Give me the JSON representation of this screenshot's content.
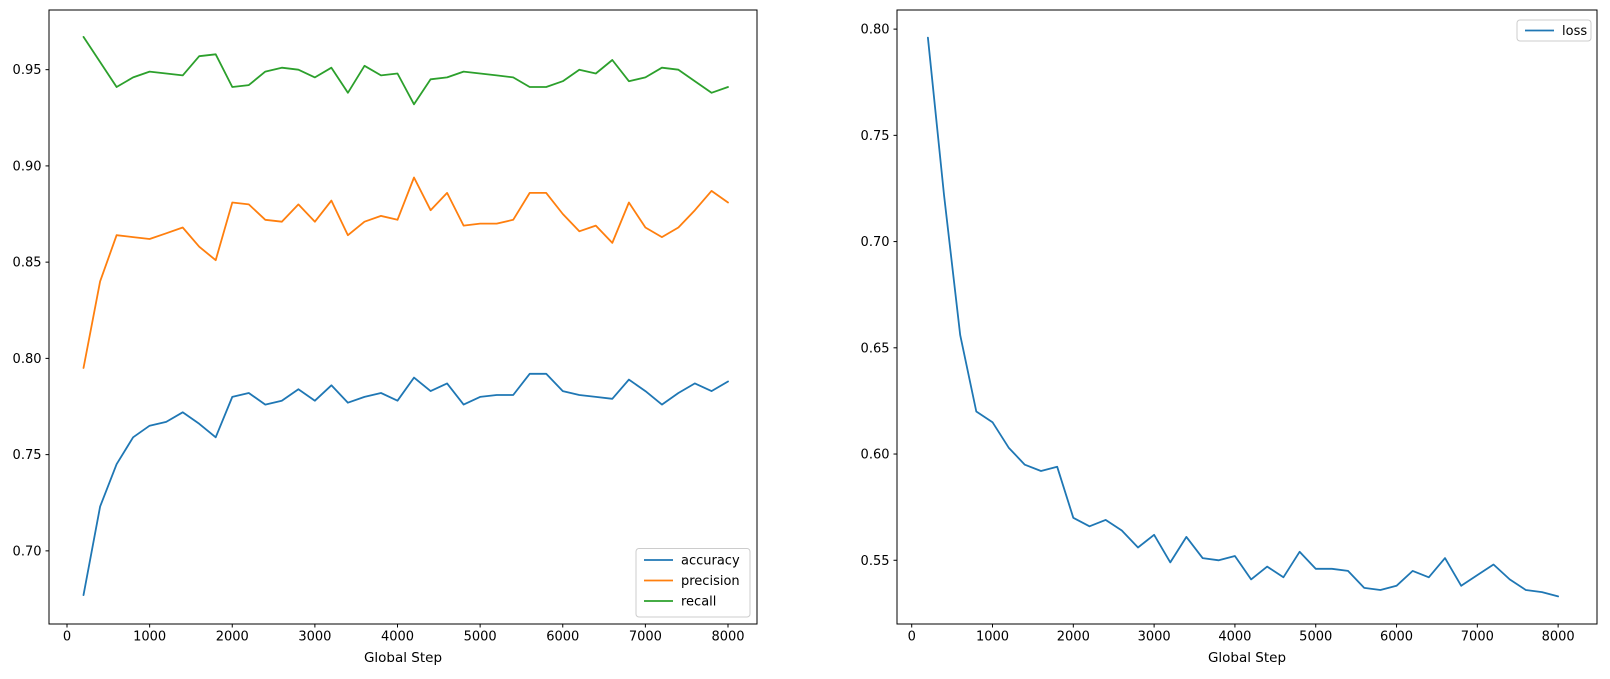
{
  "figure": {
    "background": "#ffffff",
    "text_color": "#000000",
    "spine_color": "#000000",
    "legend_border_color": "#cccccc"
  },
  "chart_data": [
    {
      "type": "line",
      "title": "",
      "xlabel": "Global Step",
      "ylabel": "",
      "grid": false,
      "x": [
        200,
        400,
        600,
        800,
        1000,
        1200,
        1400,
        1600,
        1800,
        2000,
        2200,
        2400,
        2600,
        2800,
        3000,
        3200,
        3400,
        3600,
        3800,
        4000,
        4200,
        4400,
        4600,
        4800,
        5000,
        5200,
        5400,
        5600,
        5800,
        6000,
        6200,
        6400,
        6600,
        6800,
        7000,
        7200,
        7400,
        7600,
        7800,
        8000
      ],
      "series": [
        {
          "name": "accuracy",
          "color": "#1f77b4",
          "values": [
            0.677,
            0.723,
            0.745,
            0.759,
            0.765,
            0.767,
            0.772,
            0.766,
            0.759,
            0.78,
            0.782,
            0.776,
            0.778,
            0.784,
            0.778,
            0.786,
            0.777,
            0.78,
            0.782,
            0.778,
            0.79,
            0.783,
            0.787,
            0.776,
            0.78,
            0.781,
            0.781,
            0.792,
            0.792,
            0.783,
            0.781,
            0.78,
            0.779,
            0.789,
            0.783,
            0.776,
            0.782,
            0.787,
            0.783,
            0.788
          ]
        },
        {
          "name": "precision",
          "color": "#ff7f0e",
          "values": [
            0.795,
            0.84,
            0.864,
            0.863,
            0.862,
            0.865,
            0.868,
            0.858,
            0.851,
            0.881,
            0.88,
            0.872,
            0.871,
            0.88,
            0.871,
            0.882,
            0.864,
            0.871,
            0.874,
            0.872,
            0.894,
            0.877,
            0.886,
            0.869,
            0.87,
            0.87,
            0.872,
            0.886,
            0.886,
            0.875,
            0.866,
            0.869,
            0.86,
            0.881,
            0.868,
            0.863,
            0.868,
            0.877,
            0.887,
            0.881
          ]
        },
        {
          "name": "recall",
          "color": "#2ca02c",
          "values": [
            0.967,
            0.954,
            0.941,
            0.946,
            0.949,
            0.948,
            0.947,
            0.957,
            0.958,
            0.941,
            0.942,
            0.949,
            0.951,
            0.95,
            0.946,
            0.951,
            0.938,
            0.952,
            0.947,
            0.948,
            0.932,
            0.945,
            0.946,
            0.949,
            0.948,
            0.947,
            0.946,
            0.941,
            0.941,
            0.944,
            0.95,
            0.948,
            0.955,
            0.944,
            0.946,
            0.951,
            0.95,
            0.944,
            0.938,
            0.941
          ]
        }
      ],
      "xticks": [
        0,
        1000,
        2000,
        3000,
        4000,
        5000,
        6000,
        7000,
        8000
      ],
      "yticks": [
        0.7,
        0.75,
        0.8,
        0.85,
        0.9,
        0.95
      ],
      "xlim": [
        -218,
        8351
      ],
      "ylim": [
        0.662,
        0.981
      ],
      "ytick_decimals": 2,
      "legend": {
        "position": "lower right",
        "entries": [
          "accuracy",
          "precision",
          "recall"
        ]
      }
    },
    {
      "type": "line",
      "title": "",
      "xlabel": "Global Step",
      "ylabel": "",
      "grid": false,
      "x": [
        200,
        400,
        600,
        800,
        1000,
        1200,
        1400,
        1600,
        1800,
        2000,
        2200,
        2400,
        2600,
        2800,
        3000,
        3200,
        3400,
        3600,
        3800,
        4000,
        4200,
        4400,
        4600,
        4800,
        5000,
        5200,
        5400,
        5600,
        5800,
        6000,
        6200,
        6400,
        6600,
        6800,
        7000,
        7200,
        7400,
        7600,
        7800,
        8000
      ],
      "series": [
        {
          "name": "loss",
          "color": "#1f77b4",
          "values": [
            0.796,
            0.722,
            0.656,
            0.62,
            0.615,
            0.603,
            0.595,
            0.592,
            0.594,
            0.57,
            0.566,
            0.569,
            0.564,
            0.556,
            0.562,
            0.549,
            0.561,
            0.551,
            0.55,
            0.552,
            0.541,
            0.547,
            0.542,
            0.554,
            0.546,
            0.546,
            0.545,
            0.537,
            0.536,
            0.538,
            0.545,
            0.542,
            0.551,
            0.538,
            0.543,
            0.548,
            0.541,
            0.536,
            0.535,
            0.533
          ]
        }
      ],
      "xticks": [
        0,
        1000,
        2000,
        3000,
        4000,
        5000,
        6000,
        7000,
        8000
      ],
      "yticks": [
        0.55,
        0.6,
        0.65,
        0.7,
        0.75,
        0.8
      ],
      "xlim": [
        -182,
        8481
      ],
      "ylim": [
        0.52,
        0.809
      ],
      "ytick_decimals": 2,
      "legend": {
        "position": "upper right",
        "entries": [
          "loss"
        ]
      }
    }
  ]
}
